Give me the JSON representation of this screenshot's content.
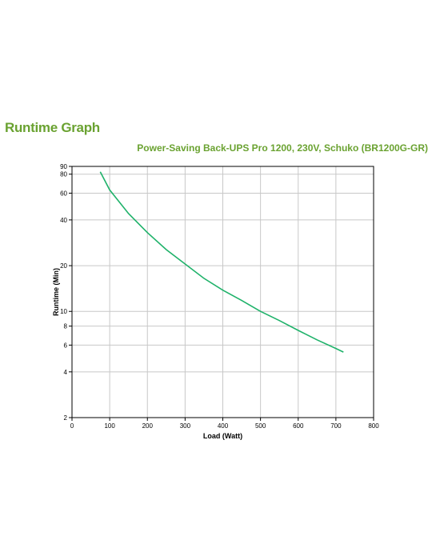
{
  "page": {
    "heading": "Runtime Graph",
    "subheading": "Power-Saving Back-UPS Pro 1200, 230V, Schuko (BR1200G-GR)"
  },
  "colors": {
    "heading": "#6aa231",
    "curve": "#1fb26a",
    "grid": "#c8c8c8"
  },
  "chart_data": {
    "type": "line",
    "title": "",
    "xlabel": "Load (Watt)",
    "ylabel": "Runtime (Min)",
    "xlim": [
      0,
      800
    ],
    "ylim": [
      2,
      90
    ],
    "yscale": "log",
    "grid": true,
    "x_ticks": [
      "0",
      "100",
      "200",
      "300",
      "400",
      "500",
      "600",
      "700",
      "800"
    ],
    "y_ticks": [
      "2",
      "4",
      "6",
      "8",
      "10",
      "20",
      "40",
      "60",
      "80",
      "90"
    ],
    "series": [
      {
        "x": [
          75,
          100,
          150,
          200,
          250,
          300,
          350,
          400,
          450,
          500,
          550,
          600,
          650,
          700,
          720
        ],
        "y": [
          83,
          63,
          44,
          33,
          25.5,
          20.5,
          16.5,
          13.8,
          11.8,
          10.0,
          8.7,
          7.5,
          6.5,
          5.7,
          5.4
        ]
      }
    ]
  }
}
